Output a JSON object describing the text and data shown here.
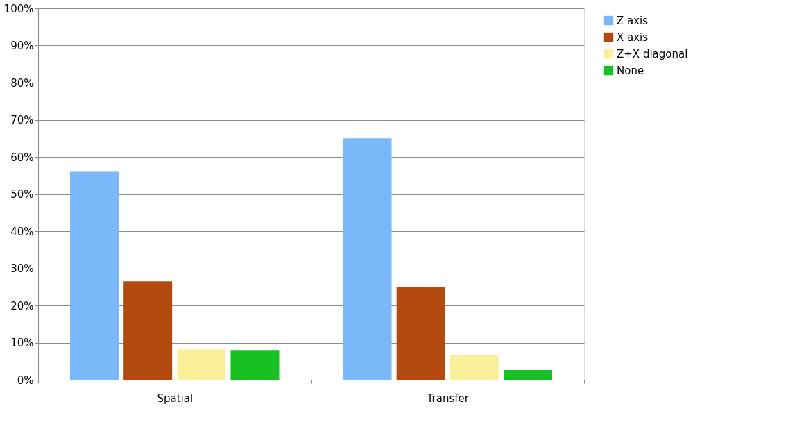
{
  "chart_data": {
    "type": "bar",
    "categories": [
      "Spatial",
      "Transfer"
    ],
    "series": [
      {
        "name": "Z axis",
        "color": "#7ab8fa",
        "values": [
          56,
          65
        ]
      },
      {
        "name": "X axis",
        "color": "#b24a0f",
        "values": [
          26.5,
          25
        ]
      },
      {
        "name": "Z+X diagonal",
        "color": "#fbf09a",
        "values": [
          8.2,
          6.6
        ]
      },
      {
        "name": "None",
        "color": "#19c023",
        "values": [
          8,
          2.6
        ]
      }
    ],
    "ylim": [
      0,
      100
    ],
    "yticks": [
      {
        "value": 0,
        "label": "0%"
      },
      {
        "value": 10,
        "label": "10%"
      },
      {
        "value": 20,
        "label": "20%"
      },
      {
        "value": 30,
        "label": "30%"
      },
      {
        "value": 40,
        "label": "40%"
      },
      {
        "value": 50,
        "label": "50%"
      },
      {
        "value": 60,
        "label": "60%"
      },
      {
        "value": 70,
        "label": "70%"
      },
      {
        "value": 80,
        "label": "80%"
      },
      {
        "value": 90,
        "label": "90%"
      },
      {
        "value": 100,
        "label": "100%"
      }
    ],
    "grid": "y",
    "legend": "right"
  }
}
